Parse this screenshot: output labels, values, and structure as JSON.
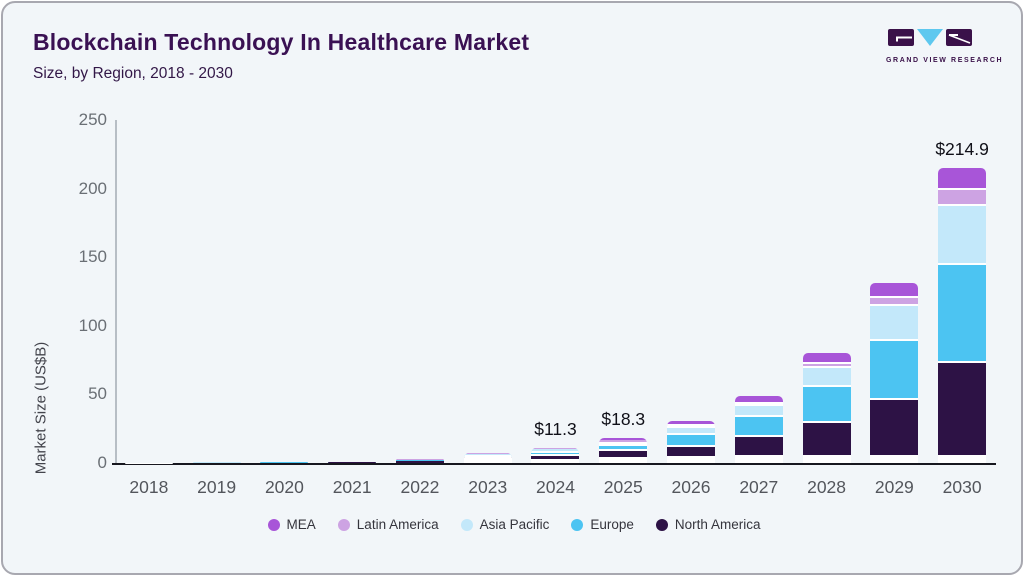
{
  "card": {
    "title": "Blockchain Technology In Healthcare Market",
    "subtitle": "Size, by Region, 2018 - 2030"
  },
  "logo": {
    "name": "grand-view-research",
    "text": "GRAND VIEW RESEARCH",
    "block_color": "#3a1149",
    "triangle_color": "#5ec8ef"
  },
  "chart_data": {
    "type": "bar",
    "stacked": true,
    "title": "Blockchain Technology In Healthcare Market",
    "subtitle": "Size, by Region, 2018 - 2030",
    "xlabel": "",
    "ylabel": "Market Size (US$B)",
    "ylim": [
      0,
      250
    ],
    "y_ticks": [
      0,
      50,
      100,
      150,
      200,
      250
    ],
    "grid": false,
    "legend_position": "bottom",
    "categories": [
      "2018",
      "2019",
      "2020",
      "2021",
      "2022",
      "2023",
      "2024",
      "2025",
      "2026",
      "2027",
      "2028",
      "2029",
      "2030"
    ],
    "series": [
      {
        "name": "North America",
        "color": "#2d1245",
        "values": [
          0.15,
          0.21,
          0.3,
          0.46,
          1.3,
          3.0,
          4.8,
          7.0,
          9.6,
          15.8,
          26.5,
          43.0,
          69.8
        ]
      },
      {
        "name": "Europe",
        "color": "#4cc4f2",
        "values": [
          0.09,
          0.13,
          0.19,
          0.29,
          0.8,
          2.6,
          3.9,
          5.3,
          10.2,
          16.3,
          27.4,
          44.2,
          73.1
        ]
      },
      {
        "name": "Asia Pacific",
        "color": "#c3e8fa",
        "values": [
          0.05,
          0.07,
          0.1,
          0.15,
          0.4,
          1.2,
          1.8,
          3.3,
          6.2,
          9.8,
          15.1,
          27.5,
          44.2
        ]
      },
      {
        "name": "Latin America",
        "color": "#cda3e3",
        "values": [
          0.01,
          0.02,
          0.03,
          0.05,
          0.1,
          0.3,
          0.4,
          1.3,
          2.2,
          2.9,
          4.4,
          7.3,
          13.6
        ]
      },
      {
        "name": "MEA",
        "color": "#a855d8",
        "values": [
          0.01,
          0.02,
          0.03,
          0.05,
          0.1,
          0.3,
          0.4,
          1.4,
          2.2,
          3.8,
          6.6,
          9.0,
          14.2
        ]
      }
    ],
    "value_labels": {
      "2024": "$11.3",
      "2025": "$18.3",
      "2030": "$214.9"
    },
    "legend": [
      {
        "label": "MEA",
        "color": "#a855d8"
      },
      {
        "label": "Latin America",
        "color": "#cda3e3"
      },
      {
        "label": "Asia Pacific",
        "color": "#c3e8fa"
      },
      {
        "label": "Europe",
        "color": "#4cc4f2"
      },
      {
        "label": "North America",
        "color": "#2d1245"
      }
    ]
  }
}
